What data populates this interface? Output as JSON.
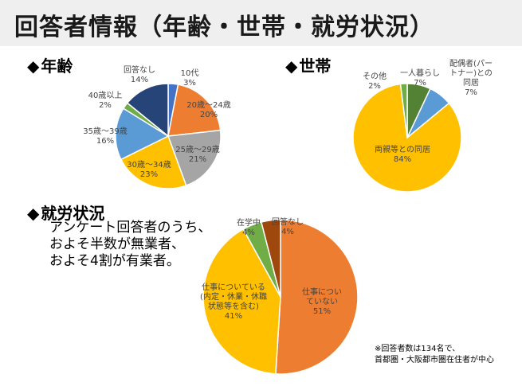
{
  "page": {
    "title": "回答者情報（年齢・世帯・就労状況）",
    "section_marker": "◆",
    "summary_lines": [
      "アンケート回答者のうち、",
      "およそ半数が無業者、",
      "およそ4割が有業者。"
    ],
    "footnote_lines": [
      "※回答者数は134名で、",
      "首都圏・大阪都市圏在住者が中心"
    ]
  },
  "chart_data": [
    {
      "type": "pie",
      "title": "年齢",
      "slices": [
        {
          "label": "10代",
          "value": 3,
          "color": "#4472c4"
        },
        {
          "label": "20歳～24歳",
          "value": 20,
          "color": "#ed7d31"
        },
        {
          "label": "25歳～29歳",
          "value": 21,
          "color": "#a5a5a5"
        },
        {
          "label": "30歳～34歳",
          "value": 23,
          "color": "#ffc000"
        },
        {
          "label": "35歳～39歳",
          "value": 16,
          "color": "#5b9bd5"
        },
        {
          "label": "40歳以上",
          "value": 2,
          "color": "#70ad47"
        },
        {
          "label": "回答なし",
          "value": 14,
          "color": "#264478"
        }
      ]
    },
    {
      "type": "pie",
      "title": "世帯",
      "slices": [
        {
          "label": "一人暮らし",
          "value": 7,
          "color": "#548235"
        },
        {
          "label": "配偶者(パートナー)との同居",
          "value": 7,
          "color": "#5b9bd5"
        },
        {
          "label": "両親等との同居",
          "value": 84,
          "color": "#ffc000"
        },
        {
          "label": "その他",
          "value": 2,
          "color": "#70ad47"
        }
      ]
    },
    {
      "type": "pie",
      "title": "就労状況",
      "slices": [
        {
          "label": "仕事についていない",
          "value": 51,
          "color": "#ed7d31"
        },
        {
          "label": "仕事についている(内定・休業・休職状態等を含む)",
          "value": 41,
          "color": "#ffc000"
        },
        {
          "label": "在学中",
          "value": 4,
          "color": "#70ad47"
        },
        {
          "label": "回答なし",
          "value": 4,
          "color": "#9e480e"
        }
      ]
    }
  ]
}
